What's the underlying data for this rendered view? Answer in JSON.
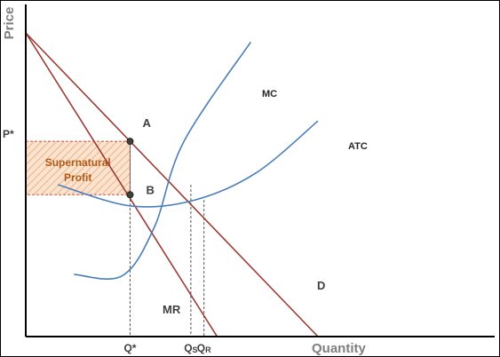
{
  "chart_data": {
    "type": "line",
    "title": "",
    "ylabel": "Price",
    "xlabel": "Quantity",
    "colors": {
      "demand": "#9b3a32",
      "cost": "#4a7ebb",
      "axis": "#000000",
      "guide": "#555555",
      "profit_fill": "#f4c8a2",
      "profit_border": "#c0504d",
      "profit_text": "#b25b16"
    },
    "series": [
      {
        "name": "D",
        "role": "demand",
        "points": [
          [
            0.0,
            1.0
          ],
          [
            1.0,
            0.0
          ]
        ]
      },
      {
        "name": "MR",
        "role": "marginal-revenue",
        "points": [
          [
            0.0,
            1.0
          ],
          [
            0.655,
            0.0
          ]
        ]
      },
      {
        "name": "MC",
        "role": "marginal-cost",
        "points": [
          [
            0.165,
            0.205
          ],
          [
            0.33,
            0.2
          ],
          [
            0.44,
            0.36
          ],
          [
            0.54,
            0.64
          ],
          [
            0.77,
            0.97
          ]
        ]
      },
      {
        "name": "ATC",
        "role": "average-total-cost",
        "points": [
          [
            0.11,
            0.5
          ],
          [
            0.36,
            0.43
          ],
          [
            0.58,
            0.45
          ],
          [
            0.79,
            0.54
          ],
          [
            1.0,
            0.71
          ]
        ]
      }
    ],
    "points": [
      {
        "label": "A",
        "x": 0.357,
        "y": 0.643
      },
      {
        "label": "B",
        "x": 0.357,
        "y": 0.467
      }
    ],
    "x_ticks": [
      {
        "label": "Q*",
        "sub": "",
        "x": 0.357
      },
      {
        "label": "Q",
        "sub": "S",
        "x": 0.565
      },
      {
        "label": "Q",
        "sub": "R",
        "x": 0.61
      }
    ],
    "y_ticks": [
      {
        "label": "P*",
        "y": 0.643
      }
    ],
    "annotation": {
      "line1": "Supernatural",
      "line2": "Profit"
    },
    "grid": false
  }
}
